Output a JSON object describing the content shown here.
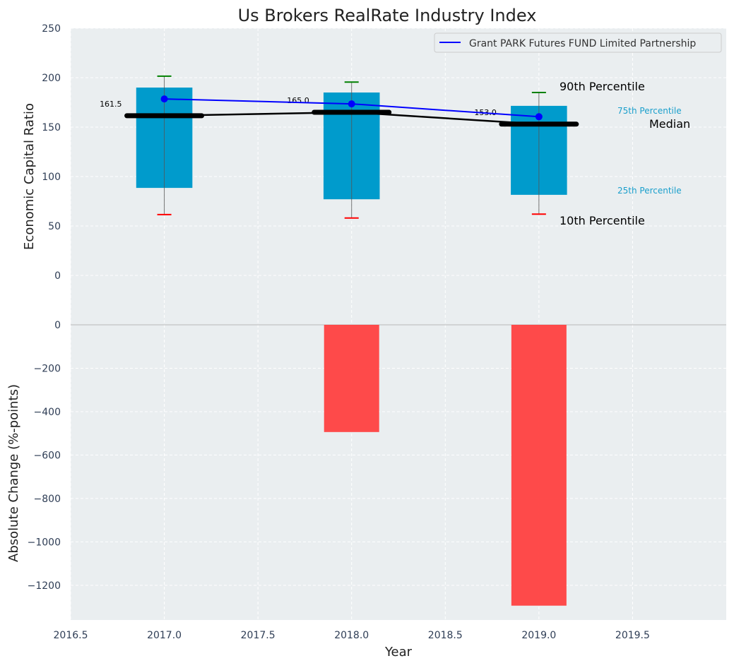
{
  "chart_data": [
    {
      "type": "box",
      "title": "Us Brokers RealRate Industry Index",
      "xlabel": "",
      "ylabel": "Economic Capital Ratio",
      "xlim": [
        2016.5,
        2020.0
      ],
      "ylim": [
        -50,
        250
      ],
      "yticks": [
        0,
        50,
        100,
        150,
        200,
        250
      ],
      "years": [
        2017,
        2018,
        2019
      ],
      "p10": [
        61.5,
        58,
        62
      ],
      "p25": [
        88.5,
        77,
        81.5
      ],
      "median": [
        161.5,
        165.0,
        153.0
      ],
      "p75": [
        190,
        185,
        171.5
      ],
      "p90": [
        201.5,
        195.5,
        185
      ],
      "median_labels": [
        "161.5",
        "165.0",
        "153.0"
      ],
      "series": [
        {
          "name": "Grant PARK Futures FUND Limited Partnership",
          "color": "#0000ff",
          "values": [
            178.5,
            173.5,
            160.5
          ]
        }
      ],
      "legend": "top-right",
      "annotations": {
        "p90": "90th Percentile",
        "p75": "75th Percentile",
        "median": "Median",
        "p25": "25th Percentile",
        "p10": "10th Percentile"
      },
      "grid": true
    },
    {
      "type": "bar",
      "xlabel": "Year",
      "ylabel": "Absolute Change (%-points)",
      "ylim": [
        -1360,
        0
      ],
      "yticks": [
        0,
        -200,
        -400,
        -600,
        -800,
        -1000,
        -1200
      ],
      "xticks": [
        2016.5,
        2017.0,
        2017.5,
        2018.0,
        2018.5,
        2019.0,
        2019.5
      ],
      "categories": [
        2017,
        2018,
        2019
      ],
      "values": [
        0,
        -494,
        -1294
      ],
      "color": "#ff4040",
      "grid": true
    }
  ]
}
